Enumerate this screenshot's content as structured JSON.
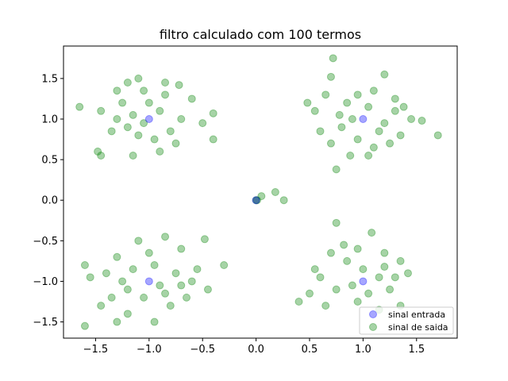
{
  "chart_data": {
    "type": "scatter",
    "title": "filtro calculado com 100 termos",
    "xlabel": "",
    "ylabel": "",
    "xlim": [
      -1.8,
      1.88
    ],
    "ylim": [
      -1.7,
      1.9
    ],
    "x_ticks": [
      -1.5,
      -1.0,
      -0.5,
      0.0,
      0.5,
      1.0,
      1.5
    ],
    "x_tick_labels": [
      "−1.5",
      "−1.0",
      "−0.5",
      "0.0",
      "0.5",
      "1.0",
      "1.5"
    ],
    "y_ticks": [
      -1.5,
      -1.0,
      -0.5,
      0.0,
      0.5,
      1.0,
      1.5
    ],
    "y_tick_labels": [
      "−1.5",
      "−1.0",
      "−0.5",
      "0.0",
      "0.5",
      "1.0",
      "1.5"
    ],
    "grid": false,
    "legend_position": "lower-right",
    "series": [
      {
        "name": "sinal entrada",
        "color": "#0000ff",
        "alpha": 0.35,
        "points": [
          [
            -1,
            1
          ],
          [
            1,
            1
          ],
          [
            -1,
            -1
          ],
          [
            1,
            -1
          ],
          [
            0,
            0
          ]
        ]
      },
      {
        "name": "sinal de saida",
        "color": "#008000",
        "alpha": 0.35,
        "points": [
          [
            0.0,
            0.0
          ],
          [
            0.05,
            0.05
          ],
          [
            0.18,
            0.1
          ],
          [
            0.26,
            0.0
          ],
          [
            0.01,
            0.0
          ],
          [
            -1.65,
            1.15
          ],
          [
            -1.45,
            1.1
          ],
          [
            -1.3,
            1.35
          ],
          [
            -1.2,
            1.45
          ],
          [
            -1.1,
            1.5
          ],
          [
            -0.85,
            1.45
          ],
          [
            -0.72,
            1.42
          ],
          [
            -0.6,
            1.25
          ],
          [
            -0.4,
            1.07
          ],
          [
            -0.5,
            0.95
          ],
          [
            -0.4,
            0.75
          ],
          [
            -1.48,
            0.6
          ],
          [
            -1.45,
            0.55
          ],
          [
            -1.15,
            0.55
          ],
          [
            -0.9,
            0.6
          ],
          [
            -1.3,
            1.0
          ],
          [
            -1.2,
            0.9
          ],
          [
            -1.1,
            0.8
          ],
          [
            -0.95,
            0.75
          ],
          [
            -0.8,
            0.85
          ],
          [
            -0.7,
            1.0
          ],
          [
            -1.0,
            1.2
          ],
          [
            -0.9,
            1.1
          ],
          [
            -1.05,
            0.95
          ],
          [
            -1.15,
            1.05
          ],
          [
            -1.35,
            0.85
          ],
          [
            -0.75,
            0.7
          ],
          [
            -1.25,
            1.2
          ],
          [
            -0.85,
            1.3
          ],
          [
            -1.05,
            1.35
          ],
          [
            1.2,
            1.55
          ],
          [
            1.1,
            1.35
          ],
          [
            0.95,
            1.3
          ],
          [
            1.3,
            1.25
          ],
          [
            1.45,
            1.0
          ],
          [
            1.55,
            0.98
          ],
          [
            1.7,
            0.8
          ],
          [
            1.25,
            0.7
          ],
          [
            1.35,
            0.8
          ],
          [
            1.05,
            0.55
          ],
          [
            0.88,
            0.55
          ],
          [
            0.75,
            0.38
          ],
          [
            0.72,
            1.75
          ],
          [
            0.7,
            1.52
          ],
          [
            0.55,
            1.1
          ],
          [
            0.6,
            0.85
          ],
          [
            0.8,
            0.9
          ],
          [
            0.95,
            0.75
          ],
          [
            1.15,
            0.85
          ],
          [
            1.3,
            1.1
          ],
          [
            0.65,
            1.3
          ],
          [
            0.85,
            1.2
          ],
          [
            1.05,
            1.15
          ],
          [
            0.9,
            1.0
          ],
          [
            1.2,
            0.95
          ],
          [
            0.7,
            0.7
          ],
          [
            0.48,
            1.2
          ],
          [
            1.38,
            1.15
          ],
          [
            0.78,
            1.05
          ],
          [
            1.1,
            0.65
          ],
          [
            -1.6,
            -0.8
          ],
          [
            -1.55,
            -0.95
          ],
          [
            -1.45,
            -1.3
          ],
          [
            -1.6,
            -1.55
          ],
          [
            -1.3,
            -1.5
          ],
          [
            -1.2,
            -1.4
          ],
          [
            -0.95,
            -1.5
          ],
          [
            -0.8,
            -1.3
          ],
          [
            -0.65,
            -1.2
          ],
          [
            -0.45,
            -1.1
          ],
          [
            -0.3,
            -0.8
          ],
          [
            -0.48,
            -0.48
          ],
          [
            -0.7,
            -0.6
          ],
          [
            -0.85,
            -0.45
          ],
          [
            -1.1,
            -0.5
          ],
          [
            -1.3,
            -0.7
          ],
          [
            -1.4,
            -0.9
          ],
          [
            -1.2,
            -1.1
          ],
          [
            -1.05,
            -1.2
          ],
          [
            -0.9,
            -1.05
          ],
          [
            -0.75,
            -0.9
          ],
          [
            -0.95,
            -0.8
          ],
          [
            -1.15,
            -0.85
          ],
          [
            -1.25,
            -1.0
          ],
          [
            -0.6,
            -1.0
          ],
          [
            -0.85,
            -1.15
          ],
          [
            -1.0,
            -0.65
          ],
          [
            -0.55,
            -0.85
          ],
          [
            -1.35,
            -1.2
          ],
          [
            -0.7,
            -1.05
          ],
          [
            0.75,
            -0.28
          ],
          [
            0.82,
            -0.55
          ],
          [
            1.08,
            -0.4
          ],
          [
            1.2,
            -0.65
          ],
          [
            1.35,
            -0.75
          ],
          [
            1.42,
            -0.9
          ],
          [
            1.25,
            -1.1
          ],
          [
            1.35,
            -1.3
          ],
          [
            1.15,
            -1.35
          ],
          [
            0.95,
            -1.25
          ],
          [
            0.75,
            -1.1
          ],
          [
            0.6,
            -0.95
          ],
          [
            0.55,
            -0.85
          ],
          [
            0.4,
            -1.25
          ],
          [
            0.65,
            -1.3
          ],
          [
            0.85,
            -0.75
          ],
          [
            1.0,
            -0.85
          ],
          [
            1.15,
            -0.95
          ],
          [
            0.9,
            -1.05
          ],
          [
            1.05,
            -1.15
          ],
          [
            0.7,
            -0.65
          ],
          [
            1.3,
            -0.95
          ],
          [
            0.5,
            -1.15
          ],
          [
            0.95,
            -0.6
          ],
          [
            1.2,
            -0.82
          ]
        ]
      }
    ]
  }
}
